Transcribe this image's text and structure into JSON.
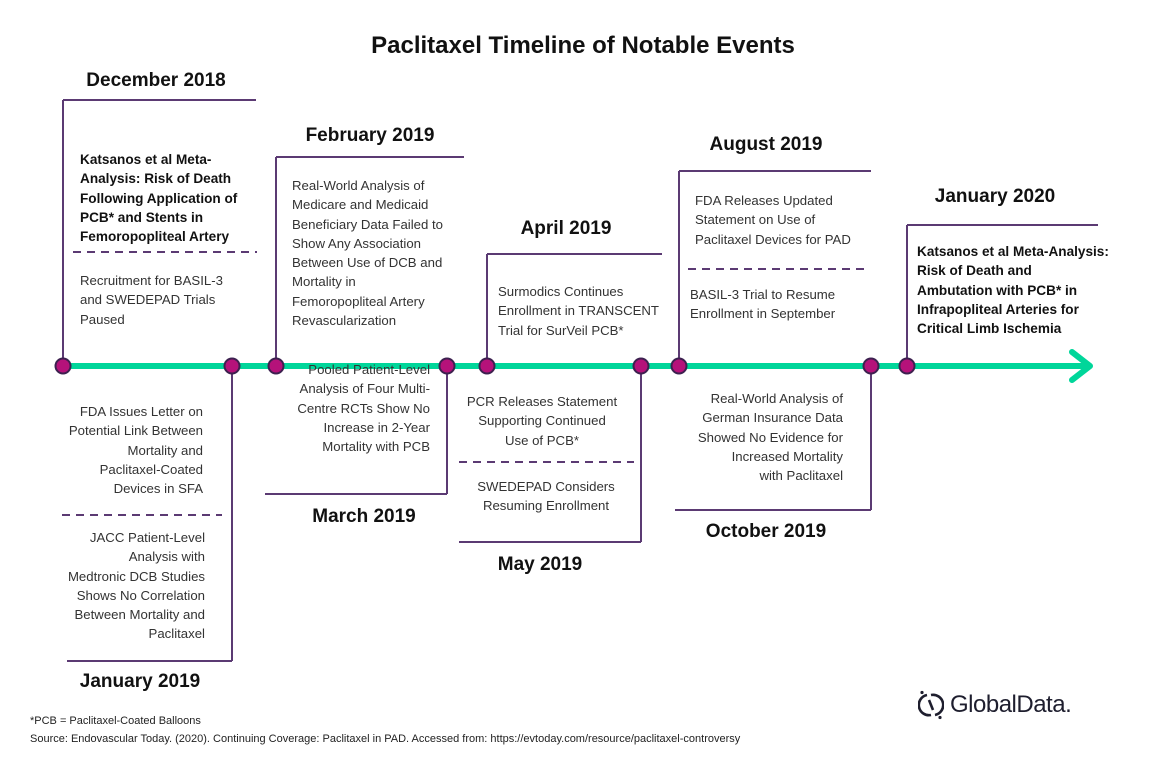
{
  "title": "Paclitaxel Timeline of Notable Events",
  "colors": {
    "axis": "#00d69a",
    "box_line": "#5b3a73",
    "dot_fill": "#b5127a",
    "dot_stroke": "#3d2150"
  },
  "events": [
    {
      "date": "December 2018",
      "side": "top",
      "blocks": [
        {
          "bold": true,
          "lines": [
            "Katsanos et al Meta-",
            "Analysis: Risk of Death",
            "Following Application of",
            "PCB* and Stents in",
            "Femoropopliteal Artery"
          ]
        },
        {
          "bold": false,
          "lines": [
            "Recruitment for BASIL-3",
            "and SWEDEPAD Trials",
            "Paused"
          ]
        }
      ]
    },
    {
      "date": "January 2019",
      "side": "bottom",
      "blocks": [
        {
          "bold": false,
          "lines": [
            "FDA Issues Letter on",
            "Potential Link Between",
            "Mortality and",
            "Paclitaxel-Coated",
            "Devices in SFA"
          ]
        },
        {
          "bold": false,
          "lines": [
            "JACC Patient-Level",
            "Analysis with",
            "Medtronic DCB Studies",
            "Shows No Correlation",
            "Between Mortality and",
            "Paclitaxel"
          ]
        }
      ]
    },
    {
      "date": "February 2019",
      "side": "top",
      "blocks": [
        {
          "bold": false,
          "lines": [
            "Real-World Analysis of",
            "Medicare and Medicaid",
            "Beneficiary Data Failed to",
            "Show Any Association",
            "Between Use of DCB and",
            "Mortality in",
            "Femoropopliteal Artery",
            "Revascularization"
          ]
        }
      ]
    },
    {
      "date": "March 2019",
      "side": "bottom",
      "blocks": [
        {
          "bold": false,
          "lines": [
            "Pooled Patient-Level",
            "Analysis of Four Multi-",
            "Centre RCTs Show No",
            "Increase in 2-Year",
            "Mortality with PCB"
          ]
        }
      ]
    },
    {
      "date": "April 2019",
      "side": "top",
      "blocks": [
        {
          "bold": false,
          "lines": [
            "Surmodics Continues",
            "Enrollment in TRANSCENT",
            "Trial for SurVeil PCB*"
          ]
        }
      ]
    },
    {
      "date": "May 2019",
      "side": "bottom",
      "blocks": [
        {
          "bold": false,
          "lines": [
            "PCR Releases Statement",
            "Supporting Continued",
            "Use of PCB*"
          ]
        },
        {
          "bold": false,
          "lines": [
            "SWEDEPAD Considers",
            "Resuming Enrollment"
          ]
        }
      ]
    },
    {
      "date": "August 2019",
      "side": "top",
      "blocks": [
        {
          "bold": false,
          "lines": [
            "FDA Releases Updated",
            "Statement on Use of",
            "Paclitaxel Devices for PAD"
          ]
        },
        {
          "bold": false,
          "lines": [
            "BASIL-3 Trial to Resume",
            "Enrollment in September"
          ]
        }
      ]
    },
    {
      "date": "October 2019",
      "side": "bottom",
      "blocks": [
        {
          "bold": false,
          "lines": [
            "Real-World Analysis of",
            "German Insurance Data",
            "Showed No Evidence for",
            "Increased Mortality",
            "with Paclitaxel"
          ]
        }
      ]
    },
    {
      "date": "January 2020",
      "side": "top",
      "blocks": [
        {
          "bold": true,
          "lines": [
            "Katsanos et al Meta-Analysis:",
            "Risk of Death and",
            "Ambutation with PCB* in",
            "Infrapopliteal Arteries for",
            "Critical Limb Ischemia"
          ]
        }
      ]
    }
  ],
  "footnote": "*PCB = Paclitaxel-Coated Balloons",
  "source": "Source: Endovascular Today. (2020). Continuing Coverage: Paclitaxel in PAD. Accessed from: https://evtoday.com/resource/paclitaxel-controversy",
  "logo": {
    "text": "GlobalData.",
    "icon": "globaldata-logo-icon"
  }
}
